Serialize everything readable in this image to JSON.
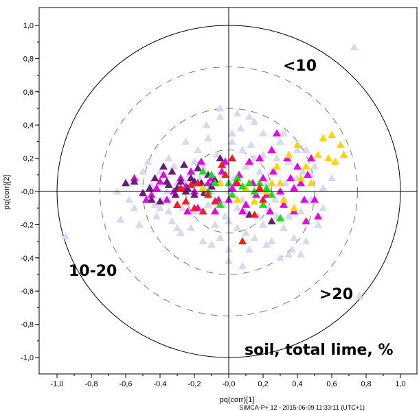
{
  "chart_data": {
    "type": "scatter",
    "title": "",
    "xlabel": "pq(corr)[1]",
    "ylabel": "pq(corr)[2]",
    "xlim": [
      -1.1,
      1.1
    ],
    "ylim": [
      -1.1,
      1.1
    ],
    "x_ticks": [
      "-1,0",
      "-0,8",
      "-0,6",
      "-0,4",
      "-0,2",
      "-0,0",
      "0,2",
      "0,4",
      "0,6",
      "0,8",
      "1,0"
    ],
    "y_ticks": [
      "1,0",
      "0,8",
      "0,6",
      "0,4",
      "0,2",
      "-0,0",
      "-0,2",
      "-0,4",
      "-0,6",
      "-0,8",
      "-1,0"
    ],
    "grid": false,
    "marker": "triangle",
    "circles": {
      "solid_radius": 1.0,
      "dashed_radii": [
        0.75,
        0.5,
        0.25
      ]
    },
    "annotations": [
      "<10",
      "10-20",
      ">20",
      "soil, total lime, %"
    ],
    "footer": "SIMCA-P+ 12 - 2015-06-09 11:33:11 (UTC+1)",
    "groups": [
      {
        "color": "#d8d8f0",
        "points": [
          [
            0.73,
            0.87
          ],
          [
            -0.95,
            -0.27
          ],
          [
            0.76,
            -0.63
          ],
          [
            -0.63,
            -0.17
          ],
          [
            -0.55,
            -0.1
          ],
          [
            -0.5,
            -0.02
          ],
          [
            -0.45,
            0.04
          ],
          [
            -0.42,
            -0.15
          ],
          [
            -0.4,
            0.12
          ],
          [
            -0.38,
            -0.05
          ],
          [
            -0.35,
            0.2
          ],
          [
            -0.33,
            -0.18
          ],
          [
            -0.3,
            0.05
          ],
          [
            -0.28,
            -0.25
          ],
          [
            -0.25,
            0.3
          ],
          [
            -0.23,
            0.1
          ],
          [
            -0.2,
            -0.12
          ],
          [
            -0.18,
            0.25
          ],
          [
            -0.15,
            -0.3
          ],
          [
            -0.13,
            0.4
          ],
          [
            -0.1,
            0.0
          ],
          [
            -0.08,
            -0.2
          ],
          [
            -0.05,
            0.45
          ],
          [
            -0.03,
            0.15
          ],
          [
            0.0,
            -0.35
          ],
          [
            0.02,
            0.3
          ],
          [
            0.05,
            -0.1
          ],
          [
            0.07,
            0.38
          ],
          [
            0.1,
            -0.25
          ],
          [
            0.12,
            0.05
          ],
          [
            0.15,
            0.42
          ],
          [
            0.17,
            -0.15
          ],
          [
            0.2,
            0.22
          ],
          [
            0.22,
            -0.32
          ],
          [
            0.25,
            0.12
          ],
          [
            0.27,
            -0.05
          ],
          [
            0.3,
            0.3
          ],
          [
            0.32,
            -0.22
          ],
          [
            0.35,
            0.18
          ],
          [
            0.37,
            -0.35
          ],
          [
            0.4,
            0.08
          ],
          [
            0.42,
            -0.12
          ],
          [
            0.45,
            0.25
          ],
          [
            0.48,
            -0.05
          ],
          [
            0.5,
            0.15
          ],
          [
            0.52,
            -0.2
          ],
          [
            0.55,
            0.02
          ],
          [
            -0.6,
            0.05
          ],
          [
            -0.52,
            -0.2
          ],
          [
            -0.47,
            0.18
          ],
          [
            -0.43,
            -0.08
          ],
          [
            -0.36,
            0.0
          ],
          [
            -0.32,
            0.15
          ],
          [
            -0.27,
            -0.1
          ],
          [
            -0.22,
            -0.22
          ],
          [
            -0.17,
            0.08
          ],
          [
            -0.12,
            -0.08
          ],
          [
            -0.07,
            0.22
          ],
          [
            -0.02,
            -0.15
          ],
          [
            0.03,
            0.08
          ],
          [
            0.08,
            -0.05
          ],
          [
            0.13,
            0.28
          ],
          [
            0.18,
            0.0
          ],
          [
            0.23,
            -0.1
          ],
          [
            0.28,
            0.2
          ],
          [
            0.33,
            0.05
          ],
          [
            0.38,
            -0.28
          ],
          [
            0.43,
            0.12
          ],
          [
            0.05,
            -0.22
          ],
          [
            -0.05,
            -0.28
          ],
          [
            0.15,
            -0.28
          ],
          [
            0.25,
            -0.3
          ],
          [
            -0.1,
            -0.32
          ],
          [
            0.0,
            -0.18
          ],
          [
            0.1,
            0.15
          ],
          [
            -0.2,
            0.18
          ],
          [
            0.2,
            0.35
          ],
          [
            0.35,
            -0.15
          ],
          [
            -0.3,
            -0.22
          ],
          [
            0.3,
            -0.4
          ],
          [
            -0.4,
            -0.1
          ],
          [
            0.45,
            -0.3
          ],
          [
            0.02,
            0.35
          ],
          [
            -0.15,
            0.15
          ],
          [
            0.08,
            0.25
          ],
          [
            0.12,
            -0.35
          ],
          [
            0.18,
            0.12
          ],
          [
            -0.08,
            -0.05
          ],
          [
            0.0,
            0.0
          ],
          [
            0.05,
            0.05
          ],
          [
            -0.03,
            -0.08
          ],
          [
            0.1,
            -0.12
          ],
          [
            0.15,
            0.2
          ],
          [
            0.22,
            0.05
          ],
          [
            0.28,
            -0.15
          ],
          [
            0.32,
            0.35
          ],
          [
            -0.12,
            0.32
          ],
          [
            -0.25,
            0.05
          ],
          [
            -0.35,
            -0.12
          ],
          [
            -0.45,
            -0.05
          ],
          [
            0.4,
            0.25
          ],
          [
            0.48,
            0.1
          ],
          [
            0.55,
            -0.1
          ],
          [
            0.6,
            0.08
          ],
          [
            -0.58,
            -0.05
          ],
          [
            -0.65,
            0.0
          ],
          [
            -0.5,
            0.12
          ],
          [
            0.0,
            -0.42
          ],
          [
            0.08,
            -0.45
          ],
          [
            -0.05,
            0.5
          ],
          [
            0.05,
            0.47
          ],
          [
            -0.15,
            0.05
          ],
          [
            0.12,
            0.45
          ],
          [
            0.2,
            -0.2
          ],
          [
            0.35,
            -0.38
          ],
          [
            0.42,
            -0.38
          ]
        ]
      },
      {
        "color": "#e800e8",
        "points": [
          [
            -0.55,
            0.08
          ],
          [
            -0.48,
            -0.05
          ],
          [
            -0.42,
            0.02
          ],
          [
            -0.38,
            0.1
          ],
          [
            -0.3,
            -0.08
          ],
          [
            -0.25,
            0.03
          ],
          [
            -0.22,
            0.12
          ],
          [
            -0.18,
            -0.1
          ],
          [
            -0.14,
            0.0
          ],
          [
            -0.1,
            0.08
          ],
          [
            -0.06,
            -0.05
          ],
          [
            -0.02,
            0.18
          ],
          [
            0.02,
            0.02
          ],
          [
            0.06,
            0.1
          ],
          [
            0.1,
            -0.08
          ],
          [
            0.14,
            0.05
          ],
          [
            0.18,
            0.2
          ],
          [
            0.22,
            -0.02
          ],
          [
            0.26,
            0.12
          ],
          [
            0.3,
            0.0
          ],
          [
            0.34,
            0.2
          ],
          [
            0.38,
            -0.12
          ],
          [
            0.42,
            0.05
          ],
          [
            0.46,
            0.1
          ],
          [
            0.5,
            -0.05
          ],
          [
            0.52,
            -0.15
          ],
          [
            0.48,
            0.2
          ],
          [
            0.44,
            -0.05
          ],
          [
            0.4,
            0.15
          ],
          [
            0.36,
            0.08
          ],
          [
            0.32,
            -0.08
          ],
          [
            0.28,
            0.35
          ],
          [
            0.24,
            -0.12
          ],
          [
            0.2,
            0.08
          ],
          [
            0.16,
            -0.02
          ],
          [
            0.12,
            0.18
          ],
          [
            0.08,
            -0.12
          ],
          [
            0.04,
            0.05
          ],
          [
            0.0,
            -0.05
          ],
          [
            -0.04,
            0.12
          ],
          [
            -0.08,
            -0.12
          ],
          [
            -0.12,
            0.05
          ],
          [
            -0.16,
            0.18
          ],
          [
            -0.2,
            0.0
          ],
          [
            -0.24,
            -0.12
          ],
          [
            -0.28,
            0.08
          ],
          [
            -0.32,
            0.0
          ],
          [
            -0.36,
            -0.05
          ],
          [
            -0.4,
            0.06
          ],
          [
            -0.45,
            -0.02
          ],
          [
            0.25,
            0.25
          ],
          [
            0.38,
            0.02
          ],
          [
            0.45,
            -0.18
          ]
        ]
      },
      {
        "color": "#6a1a7a",
        "points": [
          [
            -0.55,
            0.06
          ],
          [
            -0.5,
            -0.01
          ],
          [
            -0.46,
            0.02
          ],
          [
            -0.43,
            0.08
          ],
          [
            -0.4,
            -0.06
          ],
          [
            -0.38,
            0.15
          ],
          [
            -0.35,
            0.04
          ],
          [
            -0.33,
            0.12
          ],
          [
            -0.31,
            -0.02
          ],
          [
            -0.28,
            0.06
          ],
          [
            -0.26,
            0.16
          ],
          [
            -0.24,
            0.02
          ],
          [
            -0.22,
            0.08
          ],
          [
            -0.2,
            -0.02
          ],
          [
            -0.18,
            0.14
          ],
          [
            -0.16,
            0.05
          ],
          [
            -0.14,
            -0.01
          ],
          [
            -0.12,
            0.1
          ],
          [
            -0.1,
            0.03
          ],
          [
            -0.08,
            0.07
          ],
          [
            -0.36,
            0.06
          ],
          [
            -0.3,
            0.02
          ],
          [
            -0.2,
            0.06
          ],
          [
            -0.45,
            -0.05
          ],
          [
            -0.6,
            0.05
          ],
          [
            0.25,
            -0.18
          ],
          [
            0.12,
            -0.14
          ],
          [
            -0.05,
            0.2
          ],
          [
            -0.25,
            0.0
          ]
        ]
      },
      {
        "color": "#ffd400",
        "points": [
          [
            0.55,
            0.32
          ],
          [
            0.6,
            0.34
          ],
          [
            0.65,
            0.28
          ],
          [
            0.62,
            0.18
          ],
          [
            0.58,
            0.2
          ],
          [
            0.67,
            0.22
          ],
          [
            0.52,
            0.22
          ],
          [
            0.45,
            0.15
          ],
          [
            0.4,
            0.28
          ],
          [
            0.35,
            0.22
          ],
          [
            0.3,
            0.05
          ],
          [
            0.32,
            -0.05
          ],
          [
            0.38,
            -0.1
          ],
          [
            0.42,
            0.08
          ],
          [
            0.28,
            0.15
          ],
          [
            0.22,
            0.0
          ],
          [
            0.25,
            0.05
          ],
          [
            0.05,
            -0.05
          ],
          [
            0.1,
            0.02
          ],
          [
            -0.05,
            0.05
          ],
          [
            -0.15,
            0.02
          ],
          [
            0.48,
            0.05
          ],
          [
            0.15,
            -0.06
          ]
        ]
      },
      {
        "color": "#18e018",
        "points": [
          [
            -0.15,
            0.12
          ],
          [
            -0.12,
            0.0
          ],
          [
            -0.08,
            0.05
          ],
          [
            -0.05,
            -0.08
          ],
          [
            0.0,
            0.05
          ],
          [
            0.02,
            -0.02
          ],
          [
            0.05,
            0.08
          ],
          [
            0.08,
            0.03
          ],
          [
            0.12,
            0.05
          ],
          [
            0.15,
            0.0
          ],
          [
            0.18,
            0.05
          ],
          [
            0.22,
            0.02
          ],
          [
            0.25,
            -0.02
          ],
          [
            0.3,
            -0.16
          ],
          [
            0.2,
            -0.08
          ],
          [
            -0.1,
            0.1
          ]
        ]
      },
      {
        "color": "#ff1a1a",
        "points": [
          [
            -0.3,
            -0.08
          ],
          [
            -0.28,
            0.02
          ],
          [
            -0.25,
            -0.06
          ],
          [
            -0.22,
            0.04
          ],
          [
            -0.2,
            -0.1
          ],
          [
            -0.18,
            0.05
          ],
          [
            -0.15,
            -0.12
          ],
          [
            -0.12,
            -0.02
          ],
          [
            -0.08,
            -0.06
          ],
          [
            0.05,
            0.05
          ],
          [
            0.08,
            -0.3
          ],
          [
            0.15,
            -0.14
          ],
          [
            0.18,
            0.02
          ],
          [
            0.2,
            -0.05
          ],
          [
            0.02,
            0.2
          ],
          [
            -0.04,
            0.16
          ],
          [
            -0.02,
            0.1
          ]
        ]
      }
    ]
  }
}
